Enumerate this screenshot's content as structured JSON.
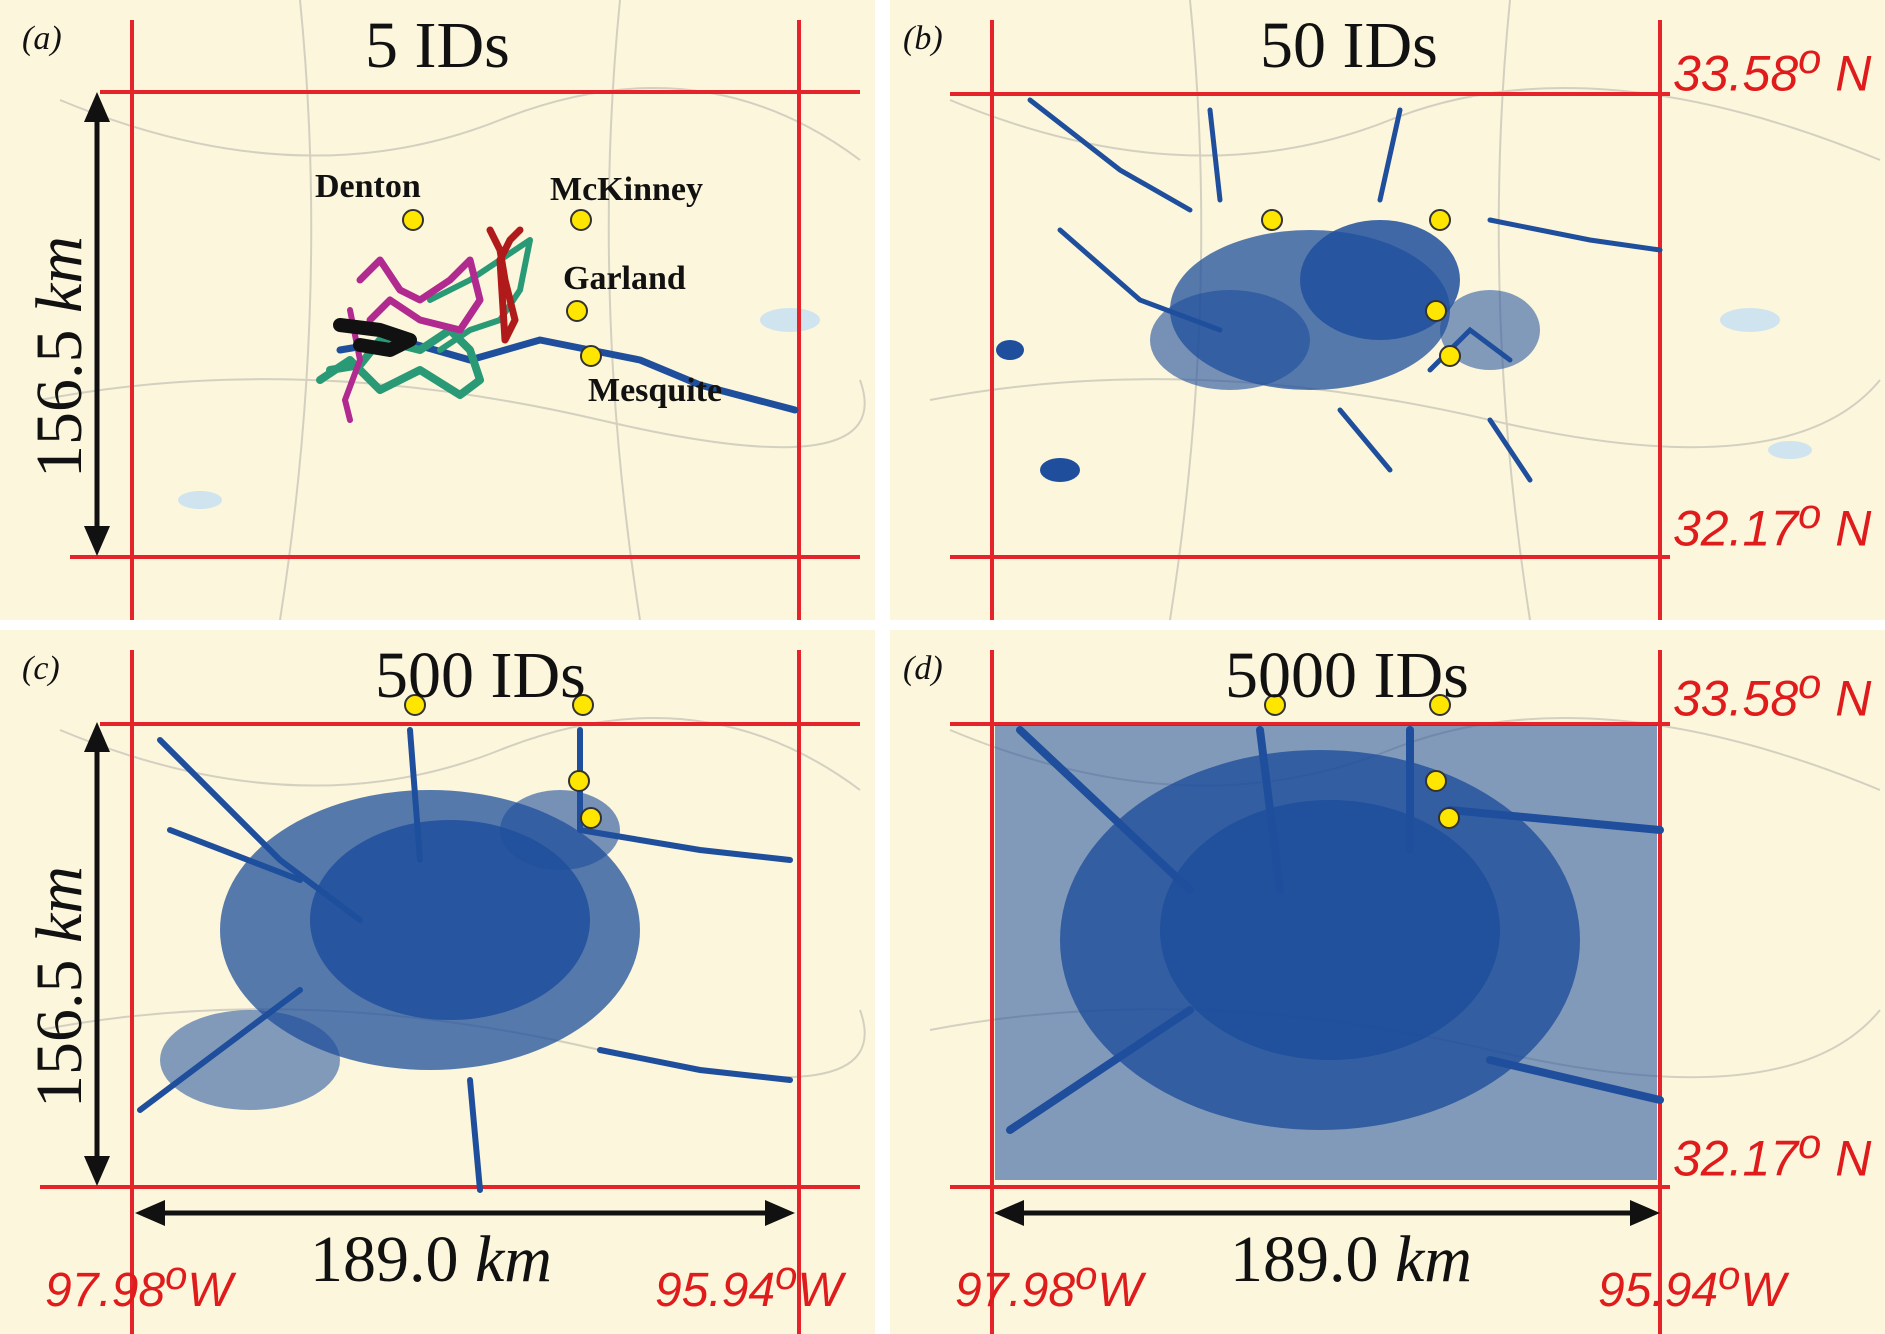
{
  "panels": [
    {
      "tag": "(a)",
      "title": "5 IDs"
    },
    {
      "tag": "(b)",
      "title": "50 IDs"
    },
    {
      "tag": "(c)",
      "title": "500 IDs"
    },
    {
      "tag": "(d)",
      "title": "5000 IDs"
    }
  ],
  "cities": {
    "denton": "Denton",
    "mckinney": "McKinney",
    "garland": "Garland",
    "mesquite": "Mesquite"
  },
  "labels": {
    "lat_north": "33.58",
    "lat_south": "32.17",
    "lat_unit": "N",
    "lon_west": "97.98",
    "lon_east": "95.94",
    "lon_unit": "W",
    "degree": "o",
    "height_value": "156.5",
    "width_value": "189.0",
    "distance_unit": "km"
  },
  "colors": {
    "grid": "#e5232b",
    "trajectory": "#1f4f9c",
    "city_marker": "#ffe600",
    "map_bg": "#fbf6dc"
  }
}
